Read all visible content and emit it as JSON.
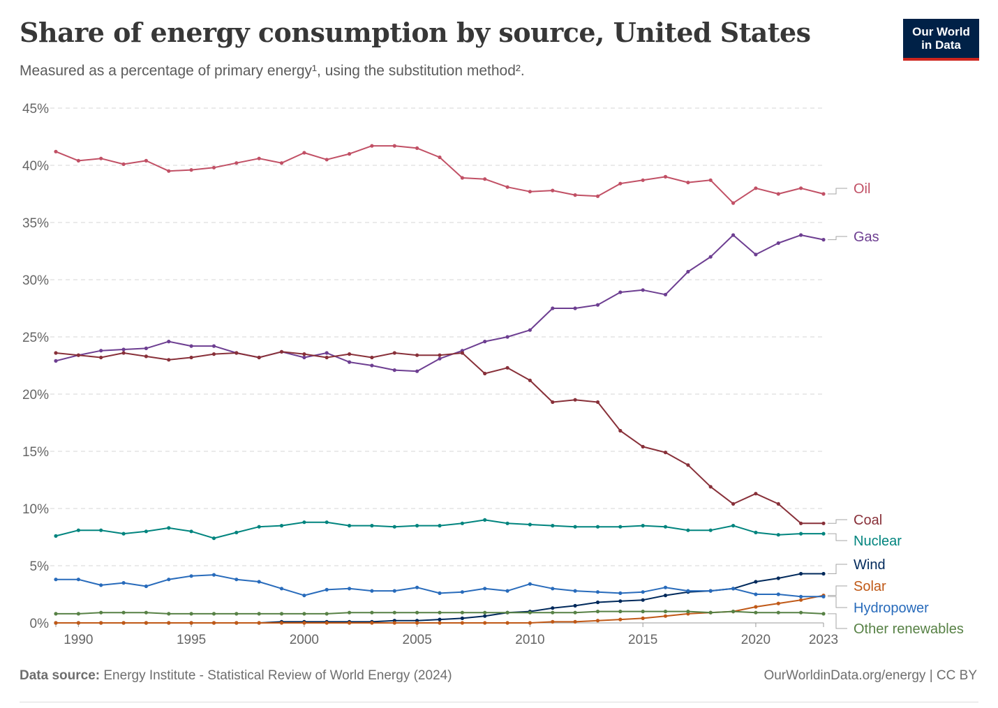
{
  "header": {
    "title": "Share of energy consumption by source, United States",
    "subtitle": "Measured as a percentage of primary energy¹, using the substitution method².",
    "logo_line1": "Our World",
    "logo_line2": "in Data"
  },
  "footer": {
    "source_label": "Data source:",
    "source_text": " Energy Institute - Statistical Review of World Energy (2024)",
    "link_text": "OurWorldinData.org/energy | CC BY"
  },
  "chart_data": {
    "type": "line",
    "title": "Share of energy consumption by source, United States",
    "subtitle": "Measured as a percentage of primary energy¹, using the substitution method².",
    "x": [
      1989,
      1990,
      1991,
      1992,
      1993,
      1994,
      1995,
      1996,
      1997,
      1998,
      1999,
      2000,
      2001,
      2002,
      2003,
      2004,
      2005,
      2006,
      2007,
      2008,
      2009,
      2010,
      2011,
      2012,
      2013,
      2014,
      2015,
      2016,
      2017,
      2018,
      2019,
      2020,
      2021,
      2022,
      2023
    ],
    "xlim": [
      1989,
      2023
    ],
    "ylim": [
      0,
      45
    ],
    "x_ticks": [
      1990,
      1995,
      2000,
      2005,
      2010,
      2015,
      2020,
      2023
    ],
    "x_tick_labels": [
      "1990",
      "1995",
      "2000",
      "2005",
      "2010",
      "2015",
      "2020",
      "2023"
    ],
    "y_ticks": [
      0,
      5,
      10,
      15,
      20,
      25,
      30,
      35,
      40,
      45
    ],
    "y_tick_labels": [
      "0%",
      "5%",
      "10%",
      "15%",
      "20%",
      "25%",
      "30%",
      "35%",
      "40%",
      "45%"
    ],
    "grid": "horizontal-dashed",
    "legend": "right-end-labels",
    "series": [
      {
        "name": "Oil",
        "color": "#c15065",
        "values": [
          41.2,
          40.4,
          40.6,
          40.1,
          40.4,
          39.5,
          39.6,
          39.8,
          40.2,
          40.6,
          40.2,
          41.1,
          40.5,
          41.0,
          41.7,
          41.7,
          41.5,
          40.7,
          38.9,
          38.8,
          38.1,
          37.7,
          37.8,
          37.4,
          37.3,
          38.4,
          38.7,
          39.0,
          38.5,
          38.7,
          36.7,
          38.0,
          37.5,
          38.0,
          37.5
        ]
      },
      {
        "name": "Gas",
        "color": "#6d3e91",
        "values": [
          22.9,
          23.4,
          23.8,
          23.9,
          24.0,
          24.6,
          24.2,
          24.2,
          23.6,
          23.2,
          23.7,
          23.2,
          23.6,
          22.8,
          22.5,
          22.1,
          22.0,
          23.1,
          23.8,
          24.6,
          25.0,
          25.6,
          27.5,
          27.5,
          27.8,
          28.9,
          29.1,
          28.7,
          30.7,
          32.0,
          33.9,
          32.2,
          33.2,
          33.9,
          33.5
        ]
      },
      {
        "name": "Coal",
        "color": "#883039",
        "values": [
          23.6,
          23.4,
          23.2,
          23.6,
          23.3,
          23.0,
          23.2,
          23.5,
          23.6,
          23.2,
          23.7,
          23.5,
          23.2,
          23.5,
          23.2,
          23.6,
          23.4,
          23.4,
          23.6,
          21.8,
          22.3,
          21.2,
          19.3,
          19.5,
          19.3,
          16.8,
          15.4,
          14.9,
          13.8,
          11.9,
          10.4,
          11.3,
          10.4,
          8.7,
          8.7
        ]
      },
      {
        "name": "Nuclear",
        "color": "#00847e",
        "values": [
          7.6,
          8.1,
          8.1,
          7.8,
          8.0,
          8.3,
          8.0,
          7.4,
          7.9,
          8.4,
          8.5,
          8.8,
          8.8,
          8.5,
          8.5,
          8.4,
          8.5,
          8.5,
          8.7,
          9.0,
          8.7,
          8.6,
          8.5,
          8.4,
          8.4,
          8.4,
          8.5,
          8.4,
          8.1,
          8.1,
          8.5,
          7.9,
          7.7,
          7.8,
          7.8
        ]
      },
      {
        "name": "Wind",
        "color": "#00295b",
        "values": [
          0.0,
          0.0,
          0.0,
          0.0,
          0.0,
          0.0,
          0.0,
          0.0,
          0.0,
          0.0,
          0.1,
          0.1,
          0.1,
          0.1,
          0.1,
          0.2,
          0.2,
          0.3,
          0.4,
          0.6,
          0.9,
          1.0,
          1.3,
          1.5,
          1.8,
          1.9,
          2.0,
          2.4,
          2.7,
          2.8,
          3.0,
          3.6,
          3.9,
          4.3,
          4.3
        ]
      },
      {
        "name": "Solar",
        "color": "#c05917",
        "values": [
          0.0,
          0.0,
          0.0,
          0.0,
          0.0,
          0.0,
          0.0,
          0.0,
          0.0,
          0.0,
          0.0,
          0.0,
          0.0,
          0.0,
          0.0,
          0.0,
          0.0,
          0.0,
          0.0,
          0.0,
          0.0,
          0.0,
          0.1,
          0.1,
          0.2,
          0.3,
          0.4,
          0.6,
          0.8,
          0.9,
          1.0,
          1.4,
          1.7,
          2.0,
          2.4
        ]
      },
      {
        "name": "Hydropower",
        "color": "#286bbb",
        "values": [
          3.8,
          3.8,
          3.3,
          3.5,
          3.2,
          3.8,
          4.1,
          4.2,
          3.8,
          3.6,
          3.0,
          2.4,
          2.9,
          3.0,
          2.8,
          2.8,
          3.1,
          2.6,
          2.7,
          3.0,
          2.8,
          3.4,
          3.0,
          2.8,
          2.7,
          2.6,
          2.7,
          3.1,
          2.8,
          2.8,
          3.0,
          2.5,
          2.5,
          2.3,
          2.3
        ]
      },
      {
        "name": "Other renewables",
        "color": "#578145",
        "values": [
          0.8,
          0.8,
          0.9,
          0.9,
          0.9,
          0.8,
          0.8,
          0.8,
          0.8,
          0.8,
          0.8,
          0.8,
          0.8,
          0.9,
          0.9,
          0.9,
          0.9,
          0.9,
          0.9,
          0.9,
          0.9,
          0.9,
          0.9,
          0.9,
          1.0,
          1.0,
          1.0,
          1.0,
          1.0,
          0.9,
          1.0,
          0.9,
          0.9,
          0.9,
          0.8
        ]
      }
    ]
  }
}
